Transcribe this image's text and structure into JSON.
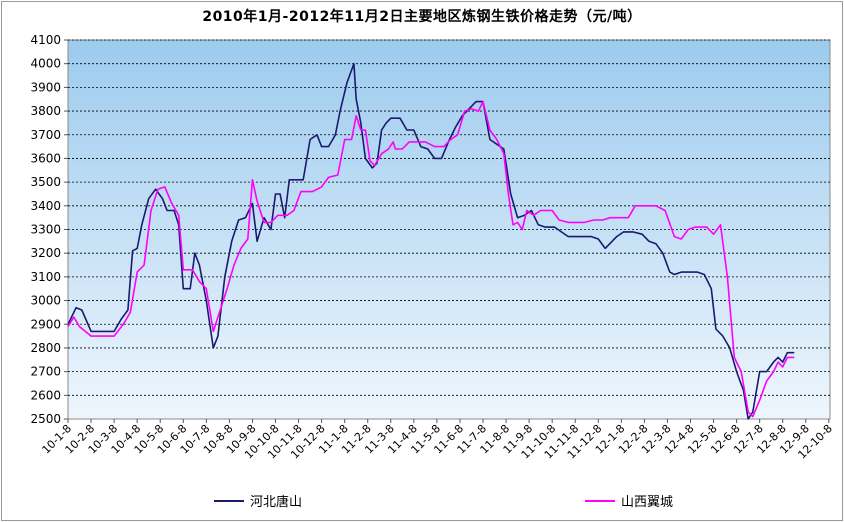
{
  "chart_data": {
    "type": "line",
    "title": "2010年1月-2012年11月2日主要地区炼钢生铁价格走势（元/吨）",
    "ylim": [
      2500,
      4100
    ],
    "ystep": 100,
    "grid": true,
    "legend_position": "bottom",
    "x_ticks": [
      "10-1-8",
      "10-2-8",
      "10-3-8",
      "10-4-8",
      "10-5-8",
      "10-6-8",
      "10-7-8",
      "10-8-8",
      "10-9-8",
      "10-10-8",
      "10-11-8",
      "10-12-8",
      "11-1-8",
      "11-2-8",
      "11-3-8",
      "11-4-8",
      "11-5-8",
      "11-6-8",
      "11-7-8",
      "11-8-8",
      "11-9-8",
      "11-10-8",
      "11-11-8",
      "11-12-8",
      "12-1-8",
      "12-2-8",
      "12-3-8",
      "12-4-8",
      "12-5-8",
      "12-6-8",
      "12-7-8",
      "12-8-8",
      "12-9-8",
      "12-10-8"
    ],
    "series": [
      {
        "name": "河北唐山",
        "color": "#1a1a6e",
        "points": [
          [
            0,
            2900
          ],
          [
            0.35,
            2970
          ],
          [
            0.6,
            2960
          ],
          [
            1.0,
            2870
          ],
          [
            1.5,
            2870
          ],
          [
            2.0,
            2870
          ],
          [
            2.3,
            2920
          ],
          [
            2.6,
            2960
          ],
          [
            2.8,
            3210
          ],
          [
            3.0,
            3220
          ],
          [
            3.2,
            3320
          ],
          [
            3.5,
            3430
          ],
          [
            3.8,
            3470
          ],
          [
            4.1,
            3430
          ],
          [
            4.3,
            3380
          ],
          [
            4.6,
            3380
          ],
          [
            4.8,
            3320
          ],
          [
            5.0,
            3050
          ],
          [
            5.3,
            3050
          ],
          [
            5.5,
            3200
          ],
          [
            5.7,
            3150
          ],
          [
            6.0,
            3000
          ],
          [
            6.3,
            2800
          ],
          [
            6.5,
            2850
          ],
          [
            6.8,
            3100
          ],
          [
            7.1,
            3250
          ],
          [
            7.4,
            3340
          ],
          [
            7.7,
            3350
          ],
          [
            8.0,
            3410
          ],
          [
            8.2,
            3250
          ],
          [
            8.5,
            3350
          ],
          [
            8.8,
            3300
          ],
          [
            9.0,
            3450
          ],
          [
            9.2,
            3450
          ],
          [
            9.4,
            3350
          ],
          [
            9.6,
            3510
          ],
          [
            9.8,
            3510
          ],
          [
            10.2,
            3510
          ],
          [
            10.5,
            3680
          ],
          [
            10.8,
            3700
          ],
          [
            11.0,
            3650
          ],
          [
            11.3,
            3650
          ],
          [
            11.6,
            3700
          ],
          [
            11.8,
            3800
          ],
          [
            12.1,
            3920
          ],
          [
            12.4,
            4000
          ],
          [
            12.5,
            3850
          ],
          [
            12.7,
            3750
          ],
          [
            12.9,
            3600
          ],
          [
            13.2,
            3560
          ],
          [
            13.4,
            3580
          ],
          [
            13.6,
            3720
          ],
          [
            13.8,
            3750
          ],
          [
            14.0,
            3770
          ],
          [
            14.4,
            3770
          ],
          [
            14.7,
            3720
          ],
          [
            15.0,
            3720
          ],
          [
            15.3,
            3650
          ],
          [
            15.6,
            3640
          ],
          [
            15.9,
            3600
          ],
          [
            16.2,
            3600
          ],
          [
            16.5,
            3670
          ],
          [
            16.8,
            3730
          ],
          [
            17.1,
            3780
          ],
          [
            17.4,
            3810
          ],
          [
            17.7,
            3840
          ],
          [
            18.0,
            3840
          ],
          [
            18.3,
            3680
          ],
          [
            18.6,
            3660
          ],
          [
            18.9,
            3640
          ],
          [
            19.2,
            3450
          ],
          [
            19.5,
            3350
          ],
          [
            19.8,
            3360
          ],
          [
            20.1,
            3380
          ],
          [
            20.4,
            3320
          ],
          [
            20.7,
            3310
          ],
          [
            21.1,
            3310
          ],
          [
            21.4,
            3290
          ],
          [
            21.7,
            3270
          ],
          [
            22.2,
            3270
          ],
          [
            22.7,
            3270
          ],
          [
            23.0,
            3260
          ],
          [
            23.3,
            3220
          ],
          [
            23.5,
            3240
          ],
          [
            23.8,
            3270
          ],
          [
            24.1,
            3290
          ],
          [
            24.5,
            3290
          ],
          [
            24.9,
            3280
          ],
          [
            25.2,
            3250
          ],
          [
            25.5,
            3240
          ],
          [
            25.8,
            3200
          ],
          [
            26.1,
            3120
          ],
          [
            26.3,
            3110
          ],
          [
            26.6,
            3120
          ],
          [
            27.3,
            3120
          ],
          [
            27.6,
            3110
          ],
          [
            27.9,
            3050
          ],
          [
            28.1,
            2880
          ],
          [
            28.4,
            2850
          ],
          [
            28.7,
            2800
          ],
          [
            29.0,
            2700
          ],
          [
            29.3,
            2620
          ],
          [
            29.5,
            2500
          ],
          [
            29.7,
            2530
          ],
          [
            30.0,
            2700
          ],
          [
            30.3,
            2700
          ],
          [
            30.6,
            2740
          ],
          [
            30.8,
            2760
          ],
          [
            31.0,
            2740
          ],
          [
            31.2,
            2780
          ],
          [
            31.5,
            2780
          ]
        ]
      },
      {
        "name": "山西翼城",
        "color": "#ff00ff",
        "points": [
          [
            0,
            2890
          ],
          [
            0.25,
            2930
          ],
          [
            0.5,
            2890
          ],
          [
            1.0,
            2850
          ],
          [
            1.5,
            2850
          ],
          [
            2.0,
            2850
          ],
          [
            2.4,
            2900
          ],
          [
            2.7,
            2950
          ],
          [
            3.0,
            3120
          ],
          [
            3.3,
            3150
          ],
          [
            3.6,
            3380
          ],
          [
            3.9,
            3470
          ],
          [
            4.2,
            3480
          ],
          [
            4.5,
            3410
          ],
          [
            4.8,
            3360
          ],
          [
            5.0,
            3130
          ],
          [
            5.4,
            3130
          ],
          [
            5.7,
            3080
          ],
          [
            6.0,
            3050
          ],
          [
            6.3,
            2870
          ],
          [
            6.6,
            2960
          ],
          [
            6.9,
            3050
          ],
          [
            7.2,
            3150
          ],
          [
            7.5,
            3220
          ],
          [
            7.8,
            3260
          ],
          [
            8.0,
            3510
          ],
          [
            8.2,
            3420
          ],
          [
            8.5,
            3330
          ],
          [
            8.8,
            3330
          ],
          [
            9.1,
            3360
          ],
          [
            9.5,
            3360
          ],
          [
            9.8,
            3380
          ],
          [
            10.1,
            3460
          ],
          [
            10.6,
            3460
          ],
          [
            11.0,
            3480
          ],
          [
            11.3,
            3520
          ],
          [
            11.7,
            3530
          ],
          [
            12.0,
            3680
          ],
          [
            12.3,
            3680
          ],
          [
            12.5,
            3780
          ],
          [
            12.7,
            3720
          ],
          [
            12.9,
            3720
          ],
          [
            13.1,
            3590
          ],
          [
            13.3,
            3570
          ],
          [
            13.6,
            3620
          ],
          [
            13.9,
            3640
          ],
          [
            14.1,
            3670
          ],
          [
            14.2,
            3640
          ],
          [
            14.5,
            3640
          ],
          [
            14.8,
            3670
          ],
          [
            15.5,
            3670
          ],
          [
            15.9,
            3650
          ],
          [
            16.3,
            3650
          ],
          [
            16.6,
            3680
          ],
          [
            16.9,
            3700
          ],
          [
            17.2,
            3800
          ],
          [
            17.5,
            3810
          ],
          [
            17.8,
            3800
          ],
          [
            18.0,
            3840
          ],
          [
            18.3,
            3720
          ],
          [
            18.6,
            3680
          ],
          [
            18.9,
            3620
          ],
          [
            19.1,
            3450
          ],
          [
            19.3,
            3320
          ],
          [
            19.5,
            3330
          ],
          [
            19.7,
            3300
          ],
          [
            19.9,
            3380
          ],
          [
            20.2,
            3360
          ],
          [
            20.5,
            3380
          ],
          [
            21.0,
            3380
          ],
          [
            21.3,
            3340
          ],
          [
            21.7,
            3330
          ],
          [
            22.4,
            3330
          ],
          [
            22.8,
            3340
          ],
          [
            23.2,
            3340
          ],
          [
            23.5,
            3350
          ],
          [
            24.3,
            3350
          ],
          [
            24.6,
            3400
          ],
          [
            25.5,
            3400
          ],
          [
            25.9,
            3380
          ],
          [
            26.3,
            3270
          ],
          [
            26.6,
            3260
          ],
          [
            26.9,
            3300
          ],
          [
            27.2,
            3310
          ],
          [
            27.7,
            3310
          ],
          [
            28.0,
            3280
          ],
          [
            28.3,
            3320
          ],
          [
            28.6,
            3100
          ],
          [
            28.9,
            2760
          ],
          [
            29.2,
            2700
          ],
          [
            29.5,
            2530
          ],
          [
            29.7,
            2510
          ],
          [
            30.0,
            2580
          ],
          [
            30.3,
            2660
          ],
          [
            30.6,
            2700
          ],
          [
            30.8,
            2740
          ],
          [
            31.0,
            2720
          ],
          [
            31.2,
            2760
          ],
          [
            31.5,
            2760
          ]
        ]
      }
    ]
  }
}
